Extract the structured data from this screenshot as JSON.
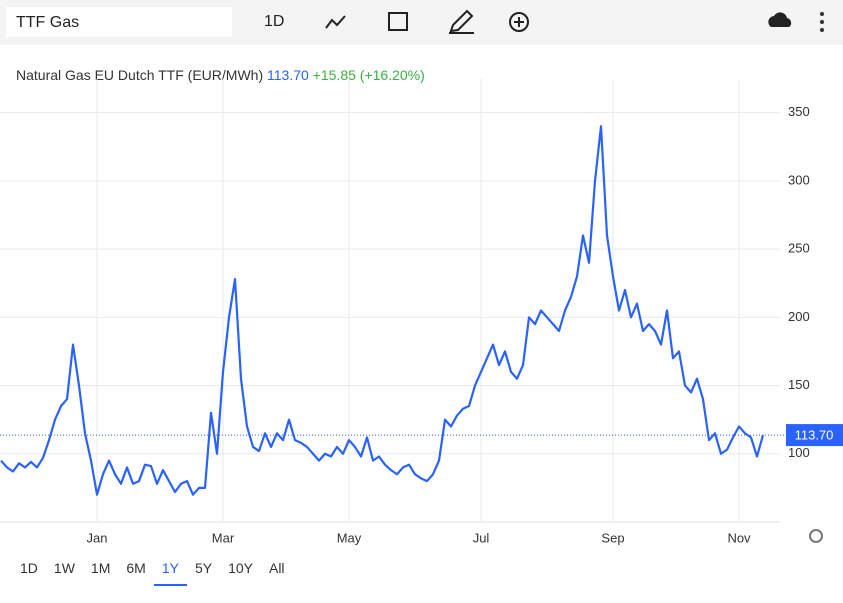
{
  "toolbar": {
    "symbol": "TTF Gas",
    "interval": "1D"
  },
  "chart_data": {
    "type": "line",
    "header": {
      "title": "Natural Gas EU Dutch TTF (EUR/MWh)",
      "price": "113.70",
      "change": "+15.85",
      "change_pct": "(+16.20%)"
    },
    "categories": [
      null,
      null,
      null,
      null,
      null,
      null,
      null,
      null,
      null,
      null,
      null,
      null,
      null,
      null,
      null,
      null,
      "Jan",
      null,
      null,
      null,
      null,
      null,
      null,
      null,
      null,
      null,
      null,
      null,
      null,
      null,
      null,
      null,
      null,
      null,
      null,
      null,
      null,
      "Mar",
      null,
      null,
      null,
      null,
      null,
      null,
      null,
      null,
      null,
      null,
      null,
      null,
      null,
      null,
      null,
      null,
      null,
      null,
      null,
      null,
      "May",
      null,
      null,
      null,
      null,
      null,
      null,
      null,
      null,
      null,
      null,
      null,
      null,
      null,
      null,
      null,
      null,
      null,
      null,
      null,
      null,
      null,
      "Jul",
      null,
      null,
      null,
      null,
      null,
      null,
      null,
      null,
      null,
      null,
      null,
      null,
      null,
      null,
      null,
      null,
      null,
      null,
      null,
      null,
      null,
      "Sep",
      null,
      null,
      null,
      null,
      null,
      null,
      null,
      null,
      null,
      null,
      null,
      null,
      null,
      null,
      null,
      null,
      null,
      null,
      null,
      null,
      "Nov",
      null,
      null,
      null,
      null
    ],
    "series": [
      {
        "name": "TTF Gas",
        "color": "#2962ff",
        "values": [
          95,
          90,
          87,
          93,
          90,
          94,
          90,
          97,
          110,
          125,
          135,
          140,
          180,
          150,
          115,
          95,
          70,
          85,
          95,
          85,
          78,
          90,
          78,
          80,
          92,
          91,
          78,
          88,
          80,
          72,
          78,
          80,
          70,
          75,
          75,
          130,
          100,
          160,
          200,
          228,
          155,
          120,
          105,
          102,
          115,
          105,
          115,
          110,
          125,
          110,
          108,
          105,
          100,
          95,
          100,
          98,
          105,
          100,
          110,
          105,
          98,
          112,
          95,
          98,
          92,
          88,
          85,
          90,
          92,
          85,
          82,
          80,
          85,
          95,
          125,
          120,
          128,
          133,
          135,
          150,
          160,
          170,
          180,
          165,
          175,
          160,
          155,
          165,
          200,
          195,
          205,
          200,
          195,
          190,
          205,
          215,
          230,
          260,
          240,
          300,
          340,
          260,
          230,
          205,
          220,
          200,
          210,
          190,
          195,
          190,
          180,
          205,
          170,
          175,
          150,
          145,
          155,
          140,
          110,
          115,
          100,
          103,
          112,
          120,
          115,
          112,
          98,
          113.7
        ]
      }
    ],
    "ylim": [
      50,
      360
    ],
    "yticks": [
      100,
      150,
      200,
      250,
      300,
      350
    ],
    "grid": true
  },
  "ranges": [
    "1D",
    "1W",
    "1M",
    "6M",
    "1Y",
    "5Y",
    "10Y",
    "All"
  ],
  "active_range": "1Y"
}
